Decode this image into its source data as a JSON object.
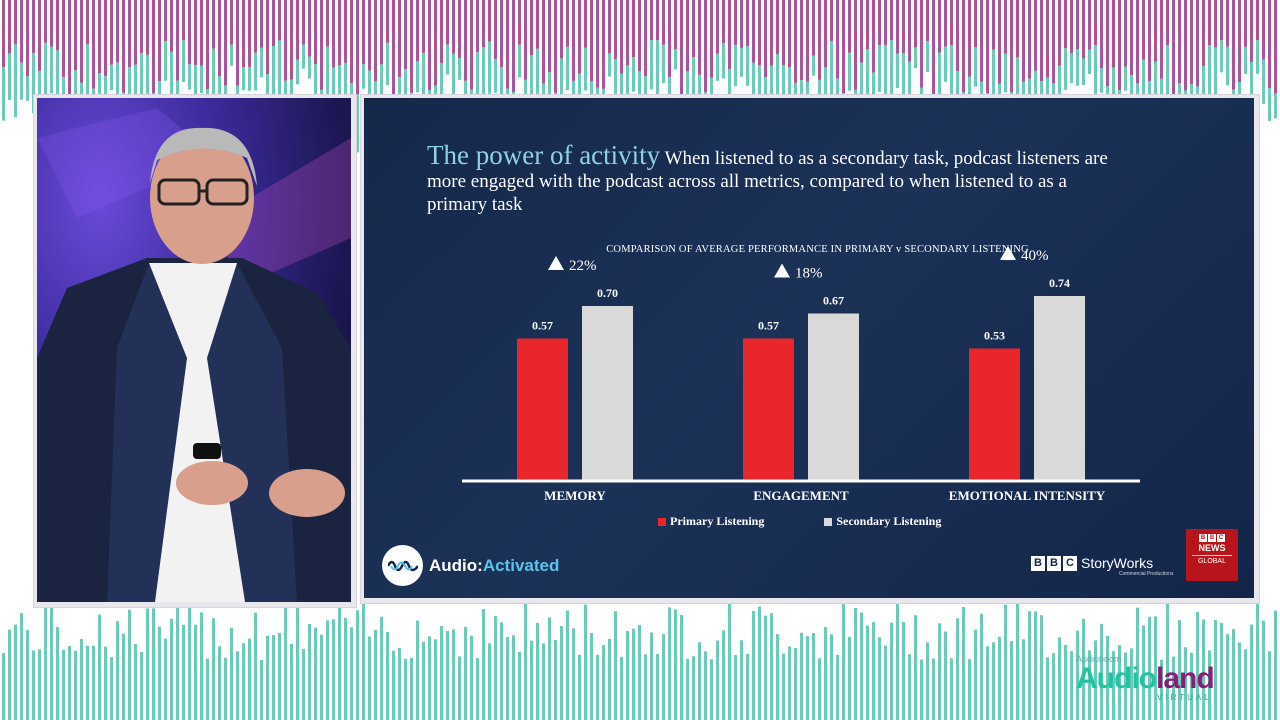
{
  "slide": {
    "heading": "The power of activity",
    "subheading": "When listened to as a secondary task, podcast listeners are more engaged with the podcast across all metrics, compared to when listened to as a primary task"
  },
  "chart_data": {
    "type": "bar",
    "title": "COMPARISON OF AVERAGE PERFORMANCE IN PRIMARY v SECONDARY LISTENING",
    "categories": [
      "MEMORY",
      "ENGAGEMENT",
      "EMOTIONAL INTENSITY"
    ],
    "series": [
      {
        "name": "Primary Listening",
        "values": [
          0.57,
          0.57,
          0.53
        ],
        "color": "#e8262c"
      },
      {
        "name": "Secondary Listening",
        "values": [
          0.7,
          0.67,
          0.74
        ],
        "color": "#d9d9d9"
      }
    ],
    "uplift_labels": [
      "22%",
      "18%",
      "40%"
    ],
    "value_labels": [
      [
        "0.57",
        "0.70"
      ],
      [
        "0.57",
        "0.67"
      ],
      [
        "0.53",
        "0.74"
      ]
    ],
    "ylim": [
      0,
      0.8
    ],
    "legend_position": "bottom",
    "grid": false
  },
  "logos": {
    "audio_activated": {
      "prefix": "Audio:",
      "accent": "Activated"
    },
    "storyworks": {
      "letters": [
        "B",
        "B",
        "C"
      ],
      "name": "StoryWorks",
      "tagline": "Commercial Productions"
    },
    "bbc_news": {
      "letters": [
        "B",
        "B",
        "C"
      ],
      "news": "NEWS",
      "global": "GLOBAL"
    },
    "audioland": {
      "sponsor": "Audioboom",
      "name_start": "Audio",
      "name_accent": "land",
      "virtual": "VIRTUAL"
    }
  },
  "colors": {
    "stripe_purple": "#8b1c7a",
    "stripe_teal": "#2fb39c",
    "slide_bg": "#17294b",
    "heading": "#8fd1e6"
  }
}
